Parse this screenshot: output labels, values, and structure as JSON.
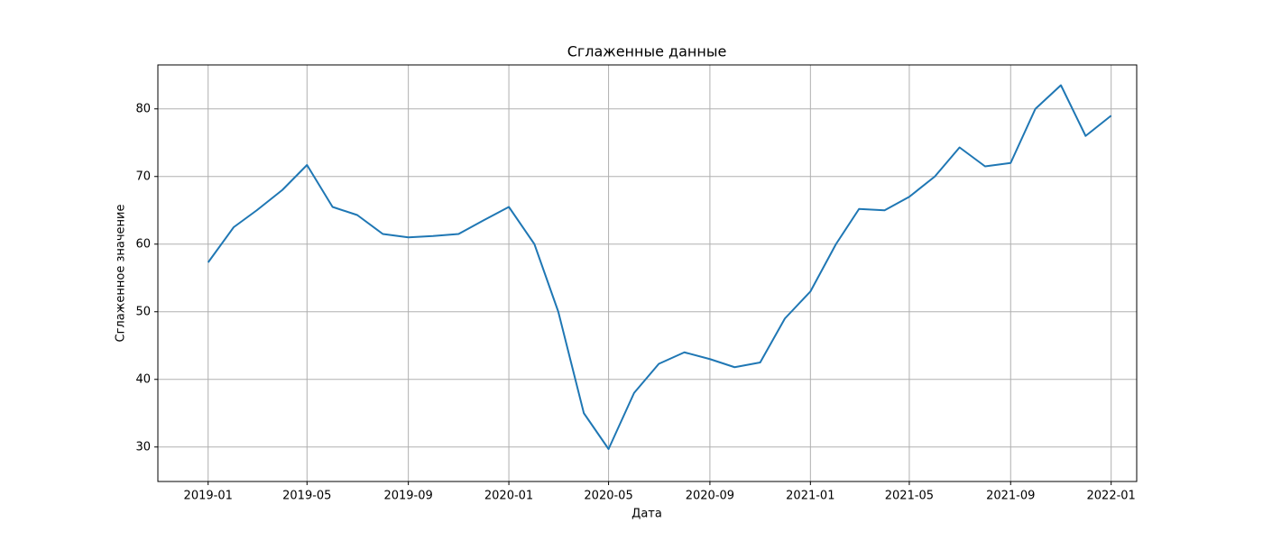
{
  "chart_data": {
    "type": "line",
    "title": "Сглаженные данные",
    "x_label": "Дата",
    "y_label": "Сглаженное значение",
    "x": [
      "2019-01",
      "2019-02",
      "2019-03",
      "2019-04",
      "2019-05",
      "2019-06",
      "2019-07",
      "2019-08",
      "2019-09",
      "2019-10",
      "2019-11",
      "2019-12",
      "2020-01",
      "2020-02",
      "2020-03",
      "2020-04",
      "2020-05",
      "2020-06",
      "2020-07",
      "2020-08",
      "2020-09",
      "2020-10",
      "2020-11",
      "2020-12",
      "2021-01",
      "2021-02",
      "2021-03",
      "2021-04",
      "2021-05",
      "2021-06",
      "2021-07",
      "2021-08",
      "2021-09",
      "2021-10",
      "2021-11",
      "2021-12",
      "2022-01"
    ],
    "series": [
      {
        "name": "Сглаженное значение",
        "color": "#1f77b4",
        "values": [
          57.3,
          62.5,
          65,
          68,
          71.7,
          65.5,
          64.3,
          61.5,
          61,
          61.2,
          61.5,
          63.5,
          65.5,
          60,
          50,
          35,
          29.7,
          38,
          42.3,
          44,
          43,
          41.8,
          42.5,
          49,
          53,
          60,
          65.2,
          65,
          67,
          70,
          74.3,
          71.5,
          72,
          80,
          83.5,
          76,
          79
        ]
      }
    ],
    "xlim": [
      "2018-11",
      "2022-02"
    ],
    "xticks": [
      "2019-01",
      "2019-05",
      "2019-09",
      "2020-01",
      "2020-05",
      "2020-09",
      "2021-01",
      "2021-05",
      "2021-09",
      "2022-01"
    ],
    "ylim": [
      24.9,
      86.5
    ],
    "yticks": [
      30,
      40,
      50,
      60,
      70,
      80
    ],
    "grid": true
  }
}
